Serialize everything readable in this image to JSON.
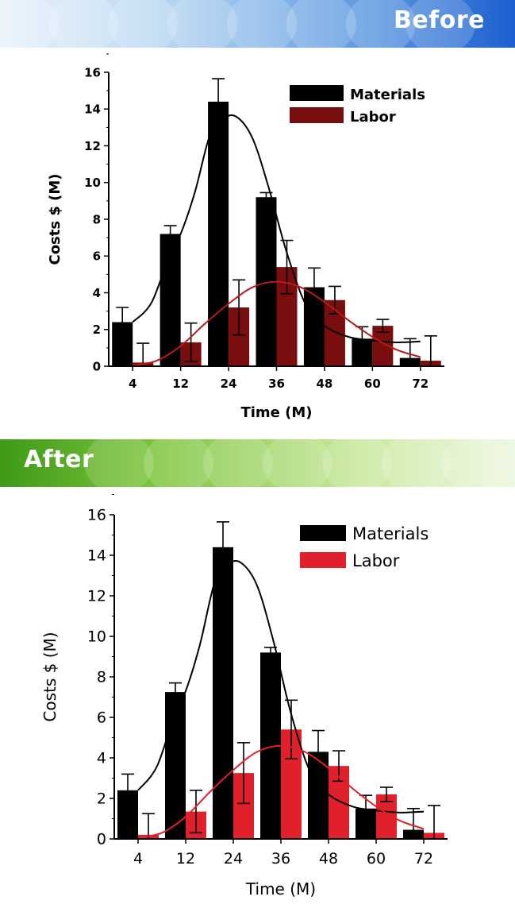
{
  "banners": {
    "before": "Before",
    "after": "After"
  },
  "colors": {
    "materials": "#000000",
    "labor_before": "#7a0d0d",
    "labor_after": "#e0202a",
    "curve_before": "#b81a1a",
    "curve_after": "#e0202a"
  },
  "chart_data": [
    {
      "panel": "before",
      "type": "bar",
      "xlabel": "Time (M)",
      "ylabel": "Costs $ (M)",
      "ylim": [
        0,
        16
      ],
      "yticks": [
        "0",
        "2",
        "4",
        "6",
        "8",
        "10",
        "12",
        "14",
        "16"
      ],
      "categories": [
        "4",
        "12",
        "24",
        "36",
        "48",
        "60",
        "72"
      ],
      "legend_position": "top-right",
      "series": [
        {
          "name": "Materials",
          "values": [
            2.4,
            7.2,
            14.4,
            9.2,
            4.3,
            1.5,
            0.45
          ],
          "errors": [
            0.8,
            0.45,
            1.25,
            0.25,
            1.05,
            0.65,
            1.05
          ]
        },
        {
          "name": "Labor",
          "values": [
            0.2,
            1.3,
            3.2,
            5.4,
            3.6,
            2.2,
            0.3
          ],
          "errors": [
            1.05,
            1.05,
            1.5,
            1.45,
            0.75,
            0.35,
            1.35
          ]
        }
      ],
      "trend_curves": [
        {
          "series": "Materials",
          "points": [
            [
              0,
              2.4
            ],
            [
              0.4,
              3.5
            ],
            [
              0.8,
              6.3
            ],
            [
              1,
              7.2
            ],
            [
              1.3,
              9.5
            ],
            [
              1.6,
              12.5
            ],
            [
              1.85,
              13.4
            ],
            [
              2.15,
              13.6
            ],
            [
              2.5,
              12.4
            ],
            [
              2.85,
              9.6
            ],
            [
              3.2,
              6.3
            ],
            [
              3.6,
              3.4
            ],
            [
              4,
              2.2
            ],
            [
              4.5,
              1.6
            ],
            [
              5,
              1.4
            ],
            [
              5.5,
              1.3
            ],
            [
              6,
              1.35
            ]
          ]
        },
        {
          "series": "Labor",
          "points": [
            [
              0,
              0.05
            ],
            [
              0.5,
              0.3
            ],
            [
              1,
              1.1
            ],
            [
              1.5,
              2.3
            ],
            [
              2,
              3.4
            ],
            [
              2.5,
              4.3
            ],
            [
              3,
              4.6
            ],
            [
              3.5,
              4.3
            ],
            [
              4,
              3.5
            ],
            [
              4.5,
              2.5
            ],
            [
              5,
              1.6
            ],
            [
              5.5,
              0.9
            ],
            [
              6,
              0.5
            ]
          ]
        }
      ]
    },
    {
      "panel": "after",
      "type": "bar",
      "xlabel": "Time (M)",
      "ylabel": "Costs $ (M)",
      "ylim": [
        0,
        16
      ],
      "yticks": [
        "0",
        "2",
        "4",
        "6",
        "8",
        "10",
        "12",
        "14",
        "16"
      ],
      "categories": [
        "4",
        "12",
        "24",
        "36",
        "48",
        "60",
        "72"
      ],
      "legend_position": "top-right",
      "series": [
        {
          "name": "Materials",
          "values": [
            2.4,
            7.25,
            14.4,
            9.2,
            4.3,
            1.5,
            0.45
          ],
          "errors": [
            0.8,
            0.45,
            1.25,
            0.25,
            1.05,
            0.65,
            1.05
          ]
        },
        {
          "name": "Labor",
          "values": [
            0.2,
            1.35,
            3.25,
            5.4,
            3.6,
            2.2,
            0.3
          ],
          "errors": [
            1.05,
            1.05,
            1.5,
            1.45,
            0.75,
            0.35,
            1.35
          ]
        }
      ],
      "trend_curves": [
        {
          "series": "Materials",
          "points": [
            [
              0,
              2.4
            ],
            [
              0.4,
              3.6
            ],
            [
              0.8,
              6.4
            ],
            [
              1,
              7.3
            ],
            [
              1.3,
              9.6
            ],
            [
              1.6,
              12.6
            ],
            [
              1.85,
              13.5
            ],
            [
              2.15,
              13.65
            ],
            [
              2.5,
              12.5
            ],
            [
              2.85,
              9.7
            ],
            [
              3.2,
              6.3
            ],
            [
              3.6,
              3.4
            ],
            [
              4,
              2.2
            ],
            [
              4.5,
              1.6
            ],
            [
              5,
              1.4
            ],
            [
              5.5,
              1.3
            ],
            [
              6,
              1.35
            ]
          ]
        },
        {
          "series": "Labor",
          "points": [
            [
              0,
              0.05
            ],
            [
              0.5,
              0.3
            ],
            [
              1,
              1.1
            ],
            [
              1.5,
              2.3
            ],
            [
              2,
              3.4
            ],
            [
              2.5,
              4.3
            ],
            [
              3,
              4.6
            ],
            [
              3.5,
              4.3
            ],
            [
              4,
              3.5
            ],
            [
              4.5,
              2.5
            ],
            [
              5,
              1.6
            ],
            [
              5.5,
              0.9
            ],
            [
              6,
              0.5
            ]
          ]
        }
      ]
    }
  ]
}
